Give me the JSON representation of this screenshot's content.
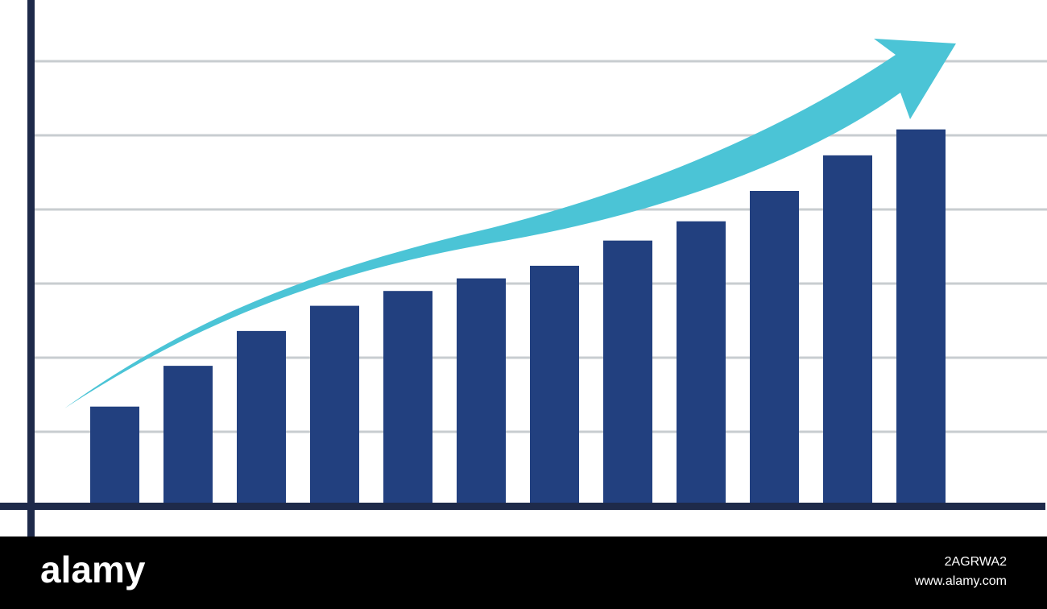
{
  "chart_data": {
    "type": "bar",
    "categories": [
      null,
      null,
      null,
      null,
      null,
      null,
      null,
      null,
      null,
      null,
      null,
      null
    ],
    "values": [
      1.34,
      1.89,
      2.36,
      2.7,
      2.9,
      3.07,
      3.24,
      3.58,
      3.84,
      4.25,
      4.73,
      5.08
    ],
    "color": "#22407f",
    "ylim": [
      0,
      6.8
    ],
    "yticks": [
      1,
      2,
      3,
      4,
      5,
      6
    ],
    "grid": true
  },
  "footer": {
    "brand": "alamy",
    "image_id": "2AGRWA2",
    "url": "www.alamy.com"
  }
}
